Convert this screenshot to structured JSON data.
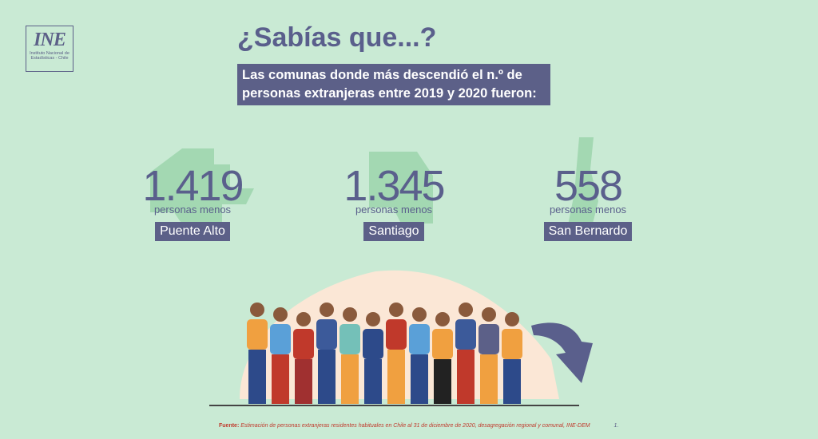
{
  "logo": {
    "mark": "INE",
    "caption": "Instituto Nacional de Estadísticas - Chile"
  },
  "header": {
    "title": "¿Sabías que...?",
    "subtitle": "Las comunas donde más descendió el n.º de personas extranjeras entre 2019 y 2020 fueron:"
  },
  "stats": [
    {
      "number": "1.419",
      "unit": "personas menos",
      "commune": "Puente Alto"
    },
    {
      "number": "1.345",
      "unit": "personas menos",
      "commune": "Santiago"
    },
    {
      "number": "558",
      "unit": "personas menos",
      "commune": "San Bernardo"
    }
  ],
  "footer": {
    "label": "Fuente:",
    "text": "Estimación de personas extranjeras residentes habituales en Chile al 31 de diciembre de 2020, desagregación regional y comunal, INE-DEM",
    "page": "1."
  }
}
